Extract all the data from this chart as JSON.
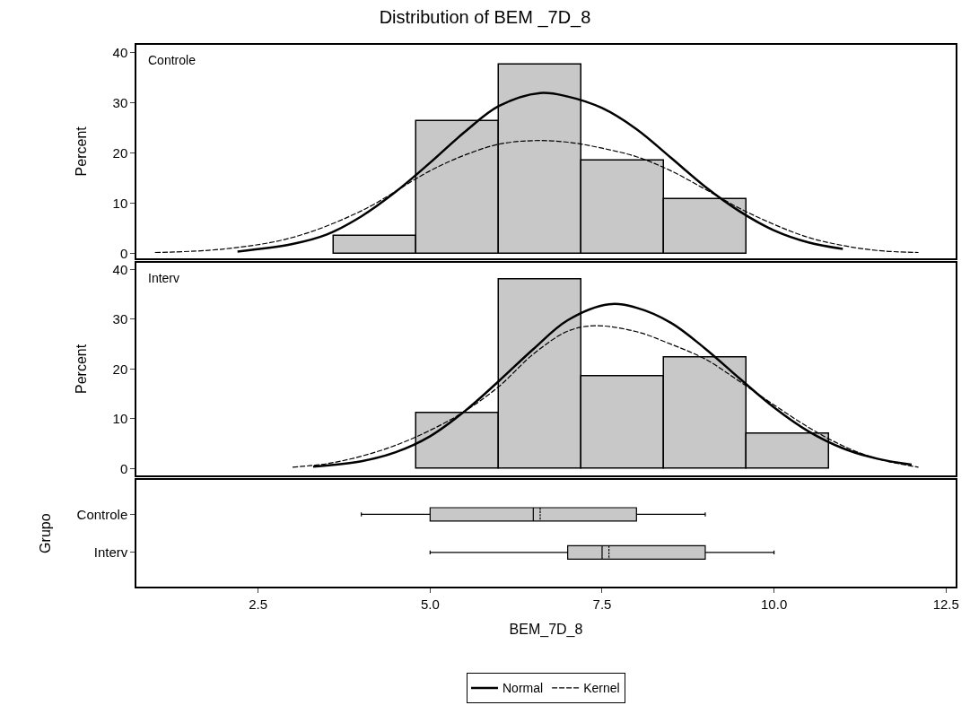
{
  "chart_data": [
    {
      "type": "histogram",
      "title": "Distribution of BEM _7D_8",
      "ylabel": "Percent",
      "annotations": [
        "Controle"
      ],
      "bins": [
        3.6,
        4.8,
        6.0,
        7.2,
        8.4,
        9.6
      ],
      "values": [
        3.5,
        26.4,
        37.6,
        18.5,
        10.8
      ],
      "color": "#c8c8c8",
      "xlim": [
        0.73,
        12.64
      ],
      "ylim": [
        -0.9,
        41.6
      ],
      "yticks": [
        0,
        10,
        20,
        30,
        40
      ],
      "tick_labels": "y",
      "legend": "bottom",
      "series": [
        {
          "name": "Normal",
          "type": "line",
          "color": "#000000",
          "line_style": "solid",
          "x": [
            2.2,
            3.0,
            3.5,
            4.0,
            4.5,
            5.0,
            5.5,
            6.0,
            6.6,
            7.0,
            7.5,
            8.0,
            8.5,
            9.0,
            9.5,
            10.0,
            10.5,
            11.0
          ],
          "values": [
            0.4,
            1.9,
            3.8,
            7.4,
            12.3,
            18.1,
            24.2,
            29.4,
            32,
            31.3,
            29.0,
            24.8,
            19.1,
            13.3,
            8.4,
            4.6,
            2.2,
            0.9
          ]
        },
        {
          "name": "Kernel",
          "type": "line",
          "color": "#000000",
          "line_style": "dashed",
          "x": [
            1.0,
            2.0,
            3.0,
            4.0,
            5.0,
            5.5,
            6.0,
            6.5,
            7.0,
            7.5,
            8.0,
            8.5,
            9.0,
            9.5,
            10.0,
            10.5,
            11.0,
            11.5,
            12.1
          ],
          "values": [
            0.2,
            0.9,
            3.2,
            8.5,
            16.5,
            19.6,
            21.8,
            22.5,
            22.2,
            21.0,
            19.3,
            16.5,
            12.8,
            9.0,
            5.8,
            3.2,
            1.6,
            0.6,
            0.2
          ]
        }
      ]
    },
    {
      "type": "histogram",
      "ylabel": "Percent",
      "annotations": [
        "Interv"
      ],
      "bins": [
        4.8,
        6.0,
        7.2,
        8.4,
        9.6,
        10.8
      ],
      "values": [
        11.1,
        38.0,
        18.6,
        22.3,
        7.0
      ],
      "color": "#c8c8c8",
      "xlim": [
        0.73,
        12.64
      ],
      "ylim": [
        -1.4,
        41.4
      ],
      "yticks": [
        0,
        10,
        20,
        30,
        40
      ],
      "tick_labels": "y",
      "legend": "bottom",
      "series": [
        {
          "name": "Normal",
          "type": "line",
          "color": "#000000",
          "line_style": "solid",
          "x": [
            3.3,
            4.0,
            4.5,
            5.0,
            5.5,
            6.0,
            6.5,
            7.0,
            7.6,
            8.0,
            8.5,
            9.0,
            9.5,
            10.0,
            10.5,
            11.0,
            11.5,
            12.0
          ],
          "values": [
            0.4,
            1.5,
            3.3,
            6.5,
            11.5,
            17.6,
            24.0,
            29.8,
            33,
            32.3,
            29.3,
            24.1,
            18.1,
            12.3,
            7.5,
            4.1,
            2.0,
            0.8
          ]
        },
        {
          "name": "Kernel",
          "type": "line",
          "color": "#000000",
          "line_style": "dashed",
          "x": [
            3.0,
            3.5,
            4.0,
            4.5,
            5.0,
            5.5,
            6.0,
            6.5,
            7.0,
            7.4,
            8.0,
            8.5,
            9.0,
            9.5,
            10.0,
            10.5,
            11.0,
            11.5,
            12.1
          ],
          "values": [
            0.3,
            1.0,
            2.5,
            4.7,
            7.7,
            11.5,
            16.5,
            23.0,
            27.6,
            28.7,
            27.5,
            25.0,
            22.0,
            17.5,
            12.8,
            8.3,
            4.6,
            2.0,
            0.3
          ]
        }
      ]
    },
    {
      "type": "box",
      "orientation": "horizontal",
      "xlabel": "BEM_7D_8",
      "ylabel": "Grupo",
      "categories": [
        "Controle",
        "Interv"
      ],
      "color": "#c8c8c8",
      "xlim": [
        0.73,
        12.64
      ],
      "xticks": [
        {
          "value": 2.5,
          "label": "2.5"
        },
        {
          "value": 5,
          "label": "5.0"
        },
        {
          "value": 7.5,
          "label": "7.5"
        },
        {
          "value": 10,
          "label": "10.0"
        },
        {
          "value": 12.5,
          "label": "12.5"
        }
      ],
      "boxes": [
        {
          "low": 4,
          "q1": 5,
          "median": 6.5,
          "q3": 8,
          "high": 9,
          "mean": 6.6
        },
        {
          "low": 5,
          "q1": 7,
          "median": 7.5,
          "q3": 9,
          "high": 10,
          "mean": 7.6
        }
      ]
    }
  ]
}
